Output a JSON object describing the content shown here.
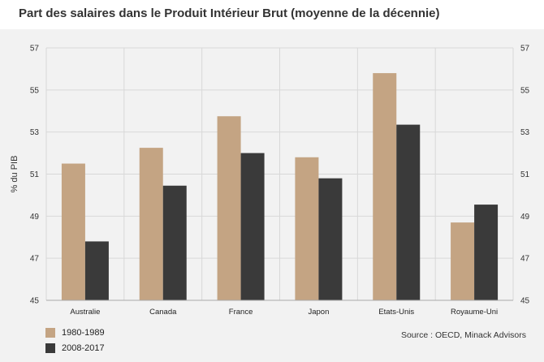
{
  "title": "Part des salaires dans le Produit Intérieur Brut (moyenne de la décennie)",
  "source": "Source : OECD, Minack Advisors",
  "colors": {
    "series1": "#c4a483",
    "series2": "#3a3a3a",
    "grid": "#d8d8d8"
  },
  "chart_data": {
    "type": "bar",
    "title": "Part des salaires dans le Produit Intérieur Brut (moyenne de la décennie)",
    "ylabel": "% du PIB",
    "xlabel": "",
    "ylim": [
      45,
      57
    ],
    "yticks": [
      45,
      47,
      49,
      51,
      53,
      55,
      57
    ],
    "grid": true,
    "legend_position": "bottom-left",
    "categories": [
      "Australie",
      "Canada",
      "France",
      "Japon",
      "Etats-Unis",
      "Royaume-Uni"
    ],
    "series": [
      {
        "name": "1980-1989",
        "values": [
          51.5,
          52.25,
          53.75,
          51.8,
          55.8,
          48.7
        ]
      },
      {
        "name": "2008-2017",
        "values": [
          47.8,
          50.45,
          52.0,
          50.8,
          53.35,
          49.55
        ]
      }
    ]
  }
}
